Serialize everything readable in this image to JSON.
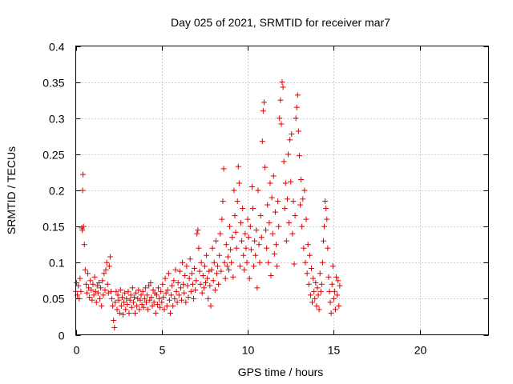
{
  "chart_data": {
    "type": "scatter",
    "title": "Day 025 of 2021, SRMTID for receiver mar7",
    "xlabel": "GPS time / hours",
    "ylabel": "SRMTID / TECUs",
    "xlim": [
      0,
      24
    ],
    "ylim": [
      0,
      0.4
    ],
    "x_ticks": [
      0,
      5,
      10,
      15,
      20
    ],
    "x_tick_labels": [
      "0",
      "5",
      "10",
      "15",
      "20"
    ],
    "y_ticks": [
      0,
      0.05,
      0.1,
      0.15,
      0.2,
      0.25,
      0.3,
      0.35,
      0.4
    ],
    "y_tick_labels": [
      "0",
      "0.05",
      "0.1",
      "0.15",
      "0.2",
      "0.25",
      "0.3",
      "0.35",
      "0.4"
    ],
    "grid": true,
    "marker": "+",
    "color": "#e00000",
    "series": [
      {
        "name": "SRMTID",
        "points": [
          [
            0.0,
            0.06
          ],
          [
            0.05,
            0.072
          ],
          [
            0.1,
            0.055
          ],
          [
            0.15,
            0.068
          ],
          [
            0.2,
            0.05
          ],
          [
            0.25,
            0.078
          ],
          [
            0.3,
            0.06
          ],
          [
            0.35,
            0.148
          ],
          [
            0.38,
            0.145
          ],
          [
            0.4,
            0.2
          ],
          [
            0.42,
            0.222
          ],
          [
            0.45,
            0.15
          ],
          [
            0.5,
            0.125
          ],
          [
            0.55,
            0.09
          ],
          [
            0.6,
            0.07
          ],
          [
            0.65,
            0.058
          ],
          [
            0.7,
            0.085
          ],
          [
            0.75,
            0.065
          ],
          [
            0.8,
            0.052
          ],
          [
            0.85,
            0.075
          ],
          [
            0.9,
            0.062
          ],
          [
            0.95,
            0.048
          ],
          [
            1.0,
            0.07
          ],
          [
            1.05,
            0.055
          ],
          [
            1.1,
            0.08
          ],
          [
            1.15,
            0.06
          ],
          [
            1.2,
            0.045
          ],
          [
            1.25,
            0.068
          ],
          [
            1.3,
            0.058
          ],
          [
            1.35,
            0.072
          ],
          [
            1.4,
            0.05
          ],
          [
            1.45,
            0.065
          ],
          [
            1.5,
            0.04
          ],
          [
            1.55,
            0.075
          ],
          [
            1.6,
            0.055
          ],
          [
            1.65,
            0.085
          ],
          [
            1.7,
            0.062
          ],
          [
            1.75,
            0.09
          ],
          [
            1.8,
            0.1
          ],
          [
            1.85,
            0.07
          ],
          [
            1.9,
            0.058
          ],
          [
            1.95,
            0.095
          ],
          [
            2.0,
            0.108
          ],
          [
            2.05,
            0.06
          ],
          [
            2.1,
            0.05
          ],
          [
            2.15,
            0.04
          ],
          [
            2.2,
            0.02
          ],
          [
            2.25,
            0.01
          ],
          [
            2.3,
            0.045
          ],
          [
            2.35,
            0.06
          ],
          [
            2.4,
            0.035
          ],
          [
            2.45,
            0.055
          ],
          [
            2.5,
            0.048
          ],
          [
            2.55,
            0.03
          ],
          [
            2.6,
            0.062
          ],
          [
            2.65,
            0.04
          ],
          [
            2.7,
            0.052
          ],
          [
            2.75,
            0.028
          ],
          [
            2.8,
            0.045
          ],
          [
            2.85,
            0.058
          ],
          [
            2.9,
            0.035
          ],
          [
            2.95,
            0.05
          ],
          [
            3.0,
            0.042
          ],
          [
            3.05,
            0.06
          ],
          [
            3.1,
            0.03
          ],
          [
            3.15,
            0.048
          ],
          [
            3.2,
            0.055
          ],
          [
            3.25,
            0.038
          ],
          [
            3.3,
            0.065
          ],
          [
            3.35,
            0.045
          ],
          [
            3.4,
            0.052
          ],
          [
            3.45,
            0.03
          ],
          [
            3.5,
            0.058
          ],
          [
            3.55,
            0.04
          ],
          [
            3.6,
            0.05
          ],
          [
            3.65,
            0.062
          ],
          [
            3.7,
            0.035
          ],
          [
            3.75,
            0.048
          ],
          [
            3.8,
            0.055
          ],
          [
            3.85,
            0.042
          ],
          [
            3.9,
            0.06
          ],
          [
            3.95,
            0.038
          ],
          [
            4.0,
            0.05
          ],
          [
            4.05,
            0.065
          ],
          [
            4.1,
            0.045
          ],
          [
            4.15,
            0.055
          ],
          [
            4.2,
            0.035
          ],
          [
            4.25,
            0.068
          ],
          [
            4.3,
            0.048
          ],
          [
            4.35,
            0.072
          ],
          [
            4.4,
            0.052
          ],
          [
            4.45,
            0.04
          ],
          [
            4.5,
            0.062
          ],
          [
            4.55,
            0.045
          ],
          [
            4.6,
            0.058
          ],
          [
            4.65,
            0.03
          ],
          [
            4.7,
            0.055
          ],
          [
            4.75,
            0.042
          ],
          [
            4.8,
            0.065
          ],
          [
            4.85,
            0.05
          ],
          [
            4.9,
            0.038
          ],
          [
            4.95,
            0.06
          ],
          [
            5.0,
            0.045
          ],
          [
            5.05,
            0.07
          ],
          [
            5.1,
            0.052
          ],
          [
            5.15,
            0.035
          ],
          [
            5.2,
            0.078
          ],
          [
            5.25,
            0.058
          ],
          [
            5.3,
            0.04
          ],
          [
            5.35,
            0.062
          ],
          [
            5.4,
            0.085
          ],
          [
            5.45,
            0.048
          ],
          [
            5.5,
            0.03
          ],
          [
            5.55,
            0.055
          ],
          [
            5.6,
            0.068
          ],
          [
            5.65,
            0.04
          ],
          [
            5.7,
            0.075
          ],
          [
            5.75,
            0.05
          ],
          [
            5.8,
            0.09
          ],
          [
            5.85,
            0.06
          ],
          [
            5.9,
            0.045
          ],
          [
            5.95,
            0.072
          ],
          [
            6.0,
            0.055
          ],
          [
            6.05,
            0.088
          ],
          [
            6.1,
            0.065
          ],
          [
            6.15,
            0.048
          ],
          [
            6.2,
            0.1
          ],
          [
            6.25,
            0.07
          ],
          [
            6.3,
            0.058
          ],
          [
            6.35,
            0.082
          ],
          [
            6.4,
            0.045
          ],
          [
            6.45,
            0.095
          ],
          [
            6.5,
            0.068
          ],
          [
            6.55,
            0.052
          ],
          [
            6.6,
            0.078
          ],
          [
            6.65,
            0.105
          ],
          [
            6.7,
            0.06
          ],
          [
            6.75,
            0.085
          ],
          [
            6.8,
            0.07
          ],
          [
            6.85,
            0.05
          ],
          [
            6.9,
            0.092
          ],
          [
            6.95,
            0.062
          ],
          [
            7.0,
            0.075
          ],
          [
            7.05,
            0.14
          ],
          [
            7.1,
            0.145
          ],
          [
            7.15,
            0.12
          ],
          [
            7.2,
            0.088
          ],
          [
            7.25,
            0.07
          ],
          [
            7.3,
            0.1
          ],
          [
            7.35,
            0.058
          ],
          [
            7.4,
            0.082
          ],
          [
            7.45,
            0.065
          ],
          [
            7.5,
            0.095
          ],
          [
            7.55,
            0.072
          ],
          [
            7.6,
            0.11
          ],
          [
            7.65,
            0.078
          ],
          [
            7.7,
            0.05
          ],
          [
            7.75,
            0.088
          ],
          [
            7.8,
            0.068
          ],
          [
            7.85,
            0.04
          ],
          [
            7.9,
            0.09
          ],
          [
            7.95,
            0.12
          ],
          [
            8.0,
            0.075
          ],
          [
            8.05,
            0.1
          ],
          [
            8.1,
            0.062
          ],
          [
            8.15,
            0.13
          ],
          [
            8.2,
            0.085
          ],
          [
            8.25,
            0.095
          ],
          [
            8.3,
            0.07
          ],
          [
            8.35,
            0.11
          ],
          [
            8.4,
            0.14
          ],
          [
            8.45,
            0.088
          ],
          [
            8.5,
            0.16
          ],
          [
            8.55,
            0.185
          ],
          [
            8.6,
            0.23
          ],
          [
            8.65,
            0.1
          ],
          [
            8.7,
            0.078
          ],
          [
            8.75,
            0.125
          ],
          [
            8.8,
            0.095
          ],
          [
            8.85,
            0.108
          ],
          [
            8.9,
            0.09
          ],
          [
            8.95,
            0.15
          ],
          [
            9.0,
            0.118
          ],
          [
            9.05,
            0.1
          ],
          [
            9.1,
            0.135
          ],
          [
            9.15,
            0.08
          ],
          [
            9.2,
            0.2
          ],
          [
            9.25,
            0.165
          ],
          [
            9.3,
            0.142
          ],
          [
            9.35,
            0.12
          ],
          [
            9.4,
            0.185
          ],
          [
            9.45,
            0.233
          ],
          [
            9.5,
            0.21
          ],
          [
            9.55,
            0.095
          ],
          [
            9.6,
            0.155
          ],
          [
            9.65,
            0.13
          ],
          [
            9.7,
            0.175
          ],
          [
            9.75,
            0.11
          ],
          [
            9.8,
            0.09
          ],
          [
            9.85,
            0.14
          ],
          [
            9.9,
            0.12
          ],
          [
            9.95,
            0.1
          ],
          [
            10.0,
            0.16
          ],
          [
            10.05,
            0.135
          ],
          [
            10.1,
            0.078
          ],
          [
            10.15,
            0.15
          ],
          [
            10.2,
            0.118
          ],
          [
            10.25,
            0.205
          ],
          [
            10.3,
            0.175
          ],
          [
            10.35,
            0.095
          ],
          [
            10.4,
            0.13
          ],
          [
            10.45,
            0.11
          ],
          [
            10.5,
            0.145
          ],
          [
            10.55,
            0.065
          ],
          [
            10.6,
            0.2
          ],
          [
            10.65,
            0.125
          ],
          [
            10.7,
            0.1
          ],
          [
            10.75,
            0.165
          ],
          [
            10.8,
            0.135
          ],
          [
            10.85,
            0.268
          ],
          [
            10.9,
            0.31
          ],
          [
            10.95,
            0.322
          ],
          [
            11.0,
            0.232
          ],
          [
            11.05,
            0.145
          ],
          [
            11.1,
            0.12
          ],
          [
            11.15,
            0.18
          ],
          [
            11.2,
            0.1
          ],
          [
            11.25,
            0.155
          ],
          [
            11.3,
            0.21
          ],
          [
            11.35,
            0.082
          ],
          [
            11.4,
            0.19
          ],
          [
            11.45,
            0.14
          ],
          [
            11.5,
            0.22
          ],
          [
            11.55,
            0.112
          ],
          [
            11.6,
            0.17
          ],
          [
            11.65,
            0.125
          ],
          [
            11.7,
            0.095
          ],
          [
            11.75,
            0.185
          ],
          [
            11.8,
            0.15
          ],
          [
            11.85,
            0.3
          ],
          [
            11.9,
            0.325
          ],
          [
            11.95,
            0.292
          ],
          [
            12.0,
            0.35
          ],
          [
            12.05,
            0.343
          ],
          [
            12.1,
            0.24
          ],
          [
            12.15,
            0.175
          ],
          [
            12.2,
            0.21
          ],
          [
            12.25,
            0.13
          ],
          [
            12.3,
            0.188
          ],
          [
            12.35,
            0.25
          ],
          [
            12.4,
            0.155
          ],
          [
            12.45,
            0.27
          ],
          [
            12.5,
            0.212
          ],
          [
            12.55,
            0.278
          ],
          [
            12.6,
            0.14
          ],
          [
            12.65,
            0.185
          ],
          [
            12.7,
            0.098
          ],
          [
            12.75,
            0.165
          ],
          [
            12.8,
            0.3
          ],
          [
            12.85,
            0.315
          ],
          [
            12.9,
            0.332
          ],
          [
            12.95,
            0.282
          ],
          [
            13.0,
            0.248
          ],
          [
            13.05,
            0.18
          ],
          [
            13.1,
            0.215
          ],
          [
            13.15,
            0.15
          ],
          [
            13.2,
            0.188
          ],
          [
            13.25,
            0.12
          ],
          [
            13.3,
            0.2
          ],
          [
            13.35,
            0.1
          ],
          [
            13.4,
            0.16
          ],
          [
            13.45,
            0.085
          ],
          [
            13.5,
            0.125
          ],
          [
            13.55,
            0.07
          ],
          [
            13.6,
            0.11
          ],
          [
            13.65,
            0.055
          ],
          [
            13.7,
            0.092
          ],
          [
            13.75,
            0.045
          ],
          [
            13.8,
            0.078
          ],
          [
            13.85,
            0.06
          ],
          [
            13.9,
            0.05
          ],
          [
            13.95,
            0.072
          ],
          [
            14.0,
            0.04
          ],
          [
            14.05,
            0.065
          ],
          [
            14.1,
            0.055
          ],
          [
            14.15,
            0.035
          ],
          [
            14.2,
            0.085
          ],
          [
            14.25,
            0.06
          ],
          [
            14.3,
            0.07
          ],
          [
            14.35,
            0.1
          ],
          [
            14.4,
            0.13
          ],
          [
            14.45,
            0.15
          ],
          [
            14.5,
            0.185
          ],
          [
            14.55,
            0.175
          ],
          [
            14.6,
            0.16
          ],
          [
            14.65,
            0.12
          ],
          [
            14.7,
            0.08
          ],
          [
            14.75,
            0.06
          ],
          [
            14.8,
            0.045
          ],
          [
            14.85,
            0.03
          ],
          [
            14.9,
            0.07
          ],
          [
            14.95,
            0.095
          ],
          [
            15.0,
            0.05
          ],
          [
            15.05,
            0.06
          ],
          [
            15.1,
            0.035
          ],
          [
            15.15,
            0.08
          ],
          [
            15.2,
            0.055
          ],
          [
            15.25,
            0.075
          ],
          [
            15.3,
            0.04
          ],
          [
            15.35,
            0.068
          ]
        ]
      }
    ]
  }
}
